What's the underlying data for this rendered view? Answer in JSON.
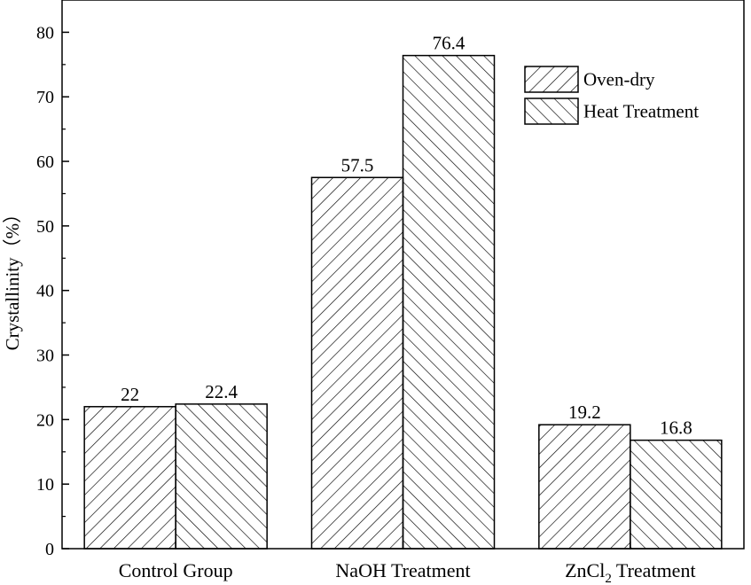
{
  "chart_data": {
    "type": "bar",
    "categories": [
      "Control Group",
      "NaOH Treatment",
      "ZnCl2 Treatment"
    ],
    "category_display": [
      {
        "base": "Control Group",
        "sub": "",
        "rest": ""
      },
      {
        "base": "NaOH Treatment",
        "sub": "",
        "rest": ""
      },
      {
        "base": "ZnCl",
        "sub": "2",
        "rest": " Treatment"
      }
    ],
    "series": [
      {
        "name": "Oven-dry",
        "values": [
          22,
          57.5,
          19.2
        ],
        "value_labels": [
          "22",
          "57.5",
          "19.2"
        ],
        "pattern": "forward-hatch"
      },
      {
        "name": "Heat Treatment",
        "values": [
          22.4,
          76.4,
          16.8
        ],
        "value_labels": [
          "22.4",
          "76.4",
          "16.8"
        ],
        "pattern": "back-hatch"
      }
    ],
    "title": "",
    "xlabel": "",
    "ylabel": "Crystallinity（%）",
    "ylim": [
      0,
      85
    ],
    "yticks": [
      0,
      10,
      20,
      30,
      40,
      50,
      60,
      70,
      80
    ],
    "grid": false,
    "legend_position": "top-right",
    "colors": {
      "bar_fill": "#ffffff",
      "hatch": "#000000",
      "axis": "#000000"
    }
  }
}
